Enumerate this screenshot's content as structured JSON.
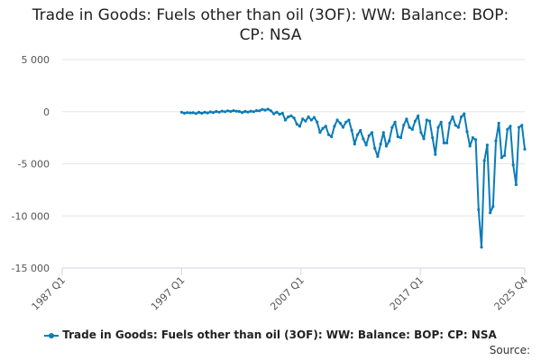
{
  "chart_data": {
    "type": "line",
    "title": "Trade in Goods: Fuels other than oil (3OF): WW: Balance: BOP: CP: NSA",
    "xlabel": "",
    "ylabel": "",
    "ylim": [
      -15000,
      5000
    ],
    "yticks": [
      5000,
      0,
      -5000,
      -10000,
      -15000
    ],
    "ytick_labels": [
      "5 000",
      "0",
      "-5 000",
      "-10 000",
      "-15 000"
    ],
    "xlim": [
      1987.0,
      2025.75
    ],
    "xticks": [
      1987.0,
      1997.0,
      2007.0,
      2017.0,
      2025.75
    ],
    "xtick_labels": [
      "1987 Q1",
      "1997 Q1",
      "2007 Q1",
      "2017 Q1",
      "2025 Q4"
    ],
    "grid": true,
    "legend_position": "bottom",
    "series": [
      {
        "name": "Trade in Goods: Fuels other than oil (3OF): WW: Balance: BOP: CP: NSA",
        "color": "#0B7CB8",
        "points": [
          [
            1997.0,
            -50
          ],
          [
            1997.25,
            -150
          ],
          [
            1997.5,
            -80
          ],
          [
            1997.75,
            -120
          ],
          [
            1998.0,
            -100
          ],
          [
            1998.25,
            -180
          ],
          [
            1998.5,
            -60
          ],
          [
            1998.75,
            -150
          ],
          [
            1999.0,
            -60
          ],
          [
            1999.25,
            -120
          ],
          [
            1999.5,
            -20
          ],
          [
            1999.75,
            -80
          ],
          [
            2000.0,
            20
          ],
          [
            2000.25,
            -50
          ],
          [
            2000.5,
            60
          ],
          [
            2000.75,
            0
          ],
          [
            2001.0,
            80
          ],
          [
            2001.25,
            20
          ],
          [
            2001.5,
            100
          ],
          [
            2001.75,
            50
          ],
          [
            2002.0,
            20
          ],
          [
            2002.25,
            -80
          ],
          [
            2002.5,
            30
          ],
          [
            2002.75,
            -40
          ],
          [
            2003.0,
            50
          ],
          [
            2003.25,
            0
          ],
          [
            2003.5,
            100
          ],
          [
            2003.75,
            80
          ],
          [
            2004.0,
            220
          ],
          [
            2004.25,
            150
          ],
          [
            2004.5,
            240
          ],
          [
            2004.75,
            80
          ],
          [
            2005.0,
            -200
          ],
          [
            2005.25,
            -50
          ],
          [
            2005.5,
            -250
          ],
          [
            2005.75,
            -150
          ],
          [
            2006.0,
            -800
          ],
          [
            2006.25,
            -500
          ],
          [
            2006.5,
            -400
          ],
          [
            2006.75,
            -600
          ],
          [
            2007.0,
            -1200
          ],
          [
            2007.25,
            -1400
          ],
          [
            2007.5,
            -700
          ],
          [
            2007.75,
            -900
          ],
          [
            2008.0,
            -500
          ],
          [
            2008.25,
            -800
          ],
          [
            2008.5,
            -550
          ],
          [
            2008.75,
            -1000
          ],
          [
            2009.0,
            -2000
          ],
          [
            2009.25,
            -1600
          ],
          [
            2009.5,
            -1400
          ],
          [
            2009.75,
            -2200
          ],
          [
            2010.0,
            -2400
          ],
          [
            2010.25,
            -1400
          ],
          [
            2010.5,
            -800
          ],
          [
            2010.75,
            -1100
          ],
          [
            2011.0,
            -1500
          ],
          [
            2011.25,
            -1000
          ],
          [
            2011.5,
            -800
          ],
          [
            2011.75,
            -1800
          ],
          [
            2012.0,
            -3100
          ],
          [
            2012.25,
            -2200
          ],
          [
            2012.5,
            -1800
          ],
          [
            2012.75,
            -2600
          ],
          [
            2013.0,
            -3200
          ],
          [
            2013.25,
            -2300
          ],
          [
            2013.5,
            -2000
          ],
          [
            2013.75,
            -3500
          ],
          [
            2014.0,
            -4300
          ],
          [
            2014.25,
            -3100
          ],
          [
            2014.5,
            -2000
          ],
          [
            2014.75,
            -3300
          ],
          [
            2015.0,
            -2800
          ],
          [
            2015.25,
            -1500
          ],
          [
            2015.5,
            -1000
          ],
          [
            2015.75,
            -2400
          ],
          [
            2016.0,
            -2500
          ],
          [
            2016.25,
            -1300
          ],
          [
            2016.5,
            -700
          ],
          [
            2016.75,
            -1500
          ],
          [
            2017.0,
            -1700
          ],
          [
            2017.25,
            -900
          ],
          [
            2017.5,
            -400
          ],
          [
            2017.75,
            -2000
          ],
          [
            2018.0,
            -2600
          ],
          [
            2018.25,
            -800
          ],
          [
            2018.5,
            -900
          ],
          [
            2018.75,
            -2500
          ],
          [
            2019.0,
            -4100
          ],
          [
            2019.25,
            -1500
          ],
          [
            2019.5,
            -1000
          ],
          [
            2019.75,
            -3000
          ],
          [
            2020.0,
            -3000
          ],
          [
            2020.25,
            -1100
          ],
          [
            2020.5,
            -500
          ],
          [
            2020.75,
            -1300
          ],
          [
            2021.0,
            -1500
          ],
          [
            2021.25,
            -500
          ],
          [
            2021.5,
            -200
          ],
          [
            2021.75,
            -1900
          ],
          [
            2022.0,
            -3300
          ],
          [
            2022.25,
            -2500
          ],
          [
            2022.5,
            -2700
          ],
          [
            2022.75,
            -9400
          ],
          [
            2023.0,
            -13000
          ],
          [
            2023.25,
            -4700
          ],
          [
            2023.5,
            -3200
          ],
          [
            2023.75,
            -9700
          ],
          [
            2024.0,
            -9100
          ],
          [
            2024.25,
            -2800
          ],
          [
            2024.5,
            -1100
          ],
          [
            2024.75,
            -4400
          ],
          [
            2025.0,
            -4200
          ],
          [
            2025.25,
            -1700
          ],
          [
            2025.5,
            -1400
          ],
          [
            2025.75,
            -5100
          ],
          [
            2026.0,
            -7000
          ],
          [
            2026.25,
            -1500
          ],
          [
            2026.5,
            -1300
          ],
          [
            2026.75,
            -3600
          ]
        ]
      }
    ]
  },
  "legend": {
    "label": "Trade in Goods: Fuels other than oil (3OF): WW: Balance: BOP: CP: NSA"
  },
  "source": {
    "label": "Source:"
  }
}
